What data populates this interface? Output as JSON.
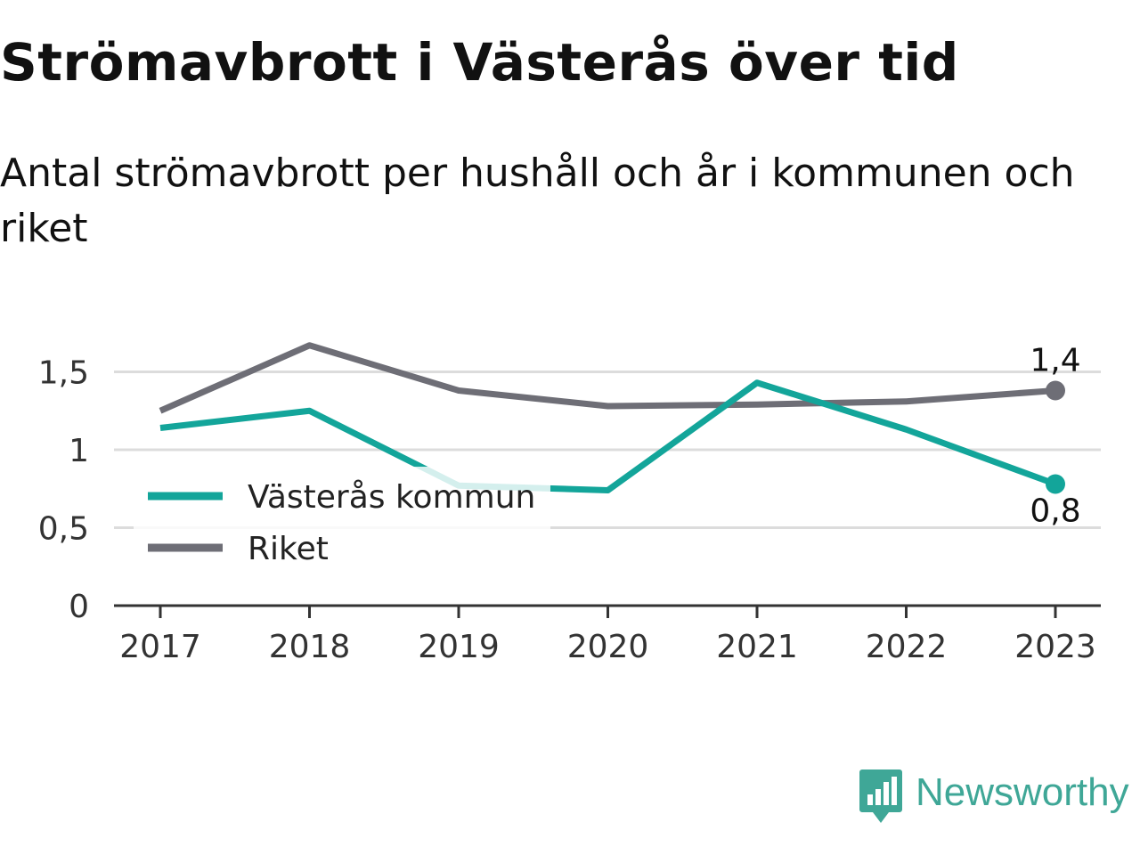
{
  "header": {
    "title": "Strömavbrott i Västerås över tid",
    "subtitle": "Antal strömavbrott per hushåll och år i kommunen och riket"
  },
  "brand": {
    "name": "Newsworthy",
    "icon": "newsworthy-logo-icon",
    "color": "#3fa797"
  },
  "chart_data": {
    "type": "line",
    "categories": [
      "2017",
      "2018",
      "2019",
      "2020",
      "2021",
      "2022",
      "2023"
    ],
    "series": [
      {
        "name": "Västerås kommun",
        "color": "#13a59a",
        "values": [
          1.14,
          1.25,
          0.77,
          0.74,
          1.43,
          1.13,
          0.78
        ],
        "end_label": "0,8"
      },
      {
        "name": "Riket",
        "color": "#6e6e76",
        "values": [
          1.25,
          1.67,
          1.38,
          1.28,
          1.29,
          1.31,
          1.38
        ],
        "end_label": "1,4"
      }
    ],
    "yticks": [
      {
        "value": 0,
        "label": "0"
      },
      {
        "value": 0.5,
        "label": "0,5"
      },
      {
        "value": 1,
        "label": "1"
      },
      {
        "value": 1.5,
        "label": "1,5"
      }
    ],
    "ylim": [
      0,
      1.7
    ],
    "grid": true,
    "legend_position": "bottom-left",
    "xlabel": "",
    "ylabel": ""
  }
}
